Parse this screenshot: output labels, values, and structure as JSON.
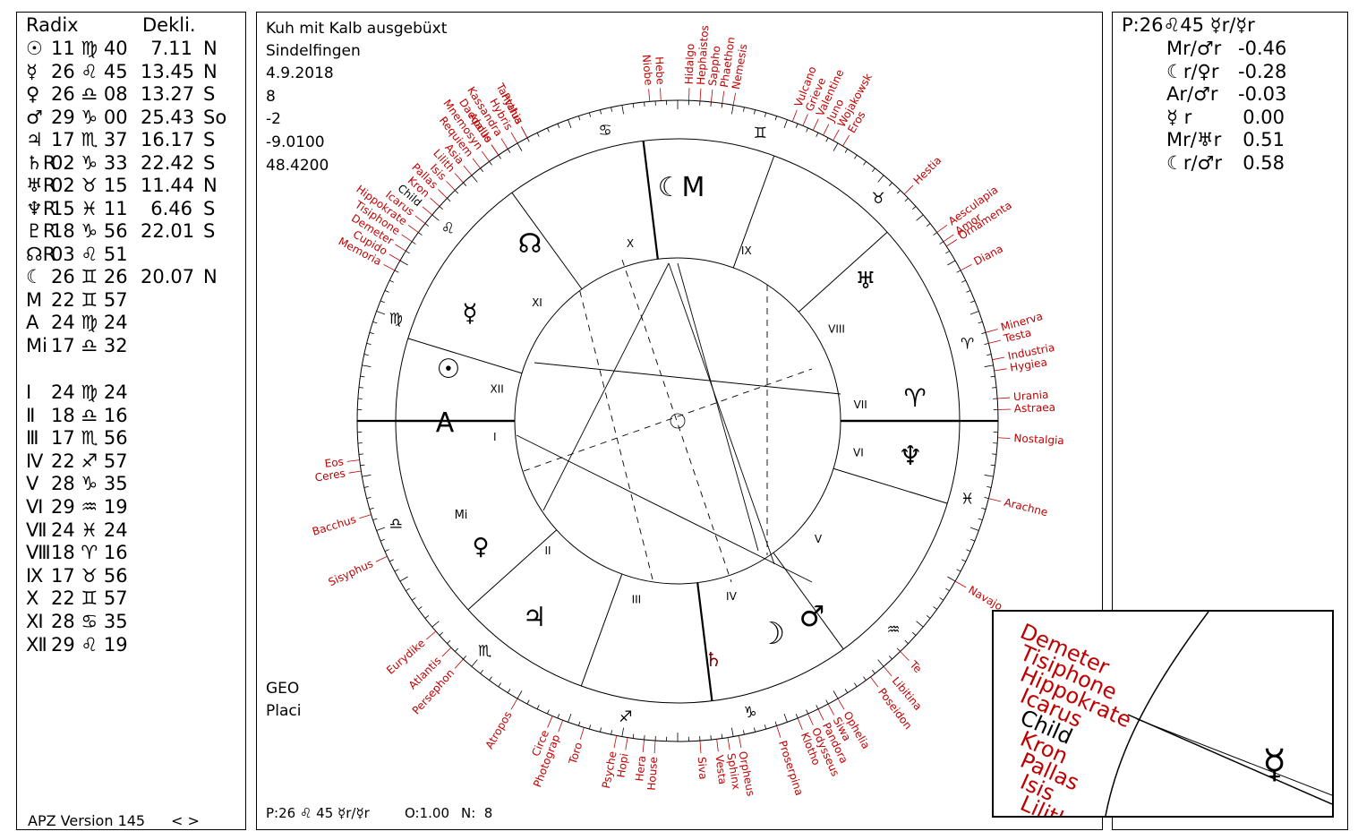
{
  "left": {
    "header_radix": "Radix",
    "header_dekli": "Dekli.",
    "planets": [
      {
        "glyph": "☉",
        "pos": "11 ♍ 40",
        "dekl": "7.11",
        "dir": "N"
      },
      {
        "glyph": "☿",
        "pos": "26 ♌ 45",
        "dekl": "13.45",
        "dir": "N"
      },
      {
        "glyph": "♀",
        "pos": "26 ♎ 08",
        "dekl": "13.27",
        "dir": "S"
      },
      {
        "glyph": "♂",
        "pos": "29 ♑ 00",
        "dekl": "25.43",
        "dir": "So"
      },
      {
        "glyph": "♃",
        "pos": "17 ♏ 37",
        "dekl": "16.17",
        "dir": "S"
      },
      {
        "glyph": "♄R",
        "pos": "02 ♑ 33",
        "dekl": "22.42",
        "dir": "S"
      },
      {
        "glyph": "♅R",
        "pos": "02 ♉ 15",
        "dekl": "11.44",
        "dir": "N"
      },
      {
        "glyph": "♆R",
        "pos": "15 ♓ 11",
        "dekl": "6.46",
        "dir": "S"
      },
      {
        "glyph": "♇R",
        "pos": "18 ♑ 56",
        "dekl": "22.01",
        "dir": "S"
      },
      {
        "glyph": "☊R",
        "pos": "03 ♌ 51",
        "dekl": "",
        "dir": ""
      },
      {
        "glyph": "☾",
        "pos": "26 ♊ 26",
        "dekl": "20.07",
        "dir": "N"
      },
      {
        "glyph": "M",
        "pos": "22 ♊ 57",
        "dekl": "",
        "dir": ""
      },
      {
        "glyph": "A",
        "pos": "24 ♍ 24",
        "dekl": "",
        "dir": ""
      },
      {
        "glyph": "Mi",
        "pos": "17 ♎ 32",
        "dekl": "",
        "dir": ""
      }
    ],
    "houses": [
      {
        "num": "Ⅰ",
        "pos": "24 ♍ 24"
      },
      {
        "num": "Ⅱ",
        "pos": "18 ♎ 16"
      },
      {
        "num": "Ⅲ",
        "pos": "17 ♏ 56"
      },
      {
        "num": "Ⅳ",
        "pos": "22 ♐ 57"
      },
      {
        "num": "Ⅴ",
        "pos": "28 ♑ 35"
      },
      {
        "num": "Ⅵ",
        "pos": "29 ♒ 19"
      },
      {
        "num": "Ⅶ",
        "pos": "24 ♓ 24"
      },
      {
        "num": "Ⅷ",
        "pos": "18 ♈ 16"
      },
      {
        "num": "Ⅸ",
        "pos": "17 ♉ 56"
      },
      {
        "num": "Ⅹ",
        "pos": "22 ♊ 57"
      },
      {
        "num": "Ⅺ",
        "pos": "28 ♋ 35"
      },
      {
        "num": "Ⅻ",
        "pos": "29 ♌ 19"
      }
    ],
    "version": "APZ Version 145",
    "nav": "< >"
  },
  "center": {
    "title": "Kuh mit Kalb ausgebüxt",
    "place": "Sindelfingen",
    "date": "4.9.2018",
    "hour": "8",
    "tz": "-2",
    "lon": "-9.0100",
    "lat": "48.4200",
    "geo": "GEO",
    "system": "Placi",
    "footer_p": "P:26 ♌ 45 ☿r/☿r",
    "footer_o": "O:1.00",
    "footer_n": "N:  8"
  },
  "right": {
    "title": "P:26♌45 ☿r/☿r",
    "rows": [
      {
        "label": "Mr/♂r",
        "value": "-0.46"
      },
      {
        "label": "☾r/♀r",
        "value": "-0.28"
      },
      {
        "label": "Ar/♂r",
        "value": "-0.03"
      },
      {
        "label": "☿ r",
        "value": "0.00"
      },
      {
        "label": "Mr/♅r",
        "value": "0.51"
      },
      {
        "label": "☾r/♂r",
        "value": "0.58"
      }
    ]
  },
  "wheel": {
    "asteroids_left": [
      "Memoria",
      "Cupido",
      "Demeter",
      "Tisiphone",
      "Hippokrate",
      "Icarus",
      "Child",
      "Kron",
      "Pallas",
      "Isis",
      "Lilith",
      "Asia",
      "Requiem",
      "Mnemosyn",
      "Daedalus",
      "Kassandra",
      "Hybris",
      "Tantalus",
      "Eos",
      "Ceres",
      "Bacchus",
      "Sisyphus",
      "Eurydike",
      "Atlantis",
      "Persephon",
      "Atropos",
      "Circe",
      "Photograp",
      "Toro",
      "Psyche",
      "Hopi",
      "Hera",
      "House",
      "Siva",
      "Vesta",
      "Sphinx",
      "Orpheus",
      "Proserpina",
      "Klotho",
      "Odysseus",
      "Pandora",
      "Siwa",
      "Ophelia",
      "Poseidon",
      "Libitina",
      "Te"
    ],
    "asteroids_right": [
      "Apollo",
      "Pythia",
      "Niobe",
      "Hebe",
      "Hidalgo",
      "Hephaistos",
      "Sappho",
      "Phaethon",
      "Nemesis",
      "Vulcano",
      "Grieve",
      "Valentine",
      "Juno",
      "Wojakowsk",
      "Eros",
      "Hestia",
      "Aesculapia",
      "Amor",
      "Ornamenta",
      "Diana",
      "Minerva",
      "Testa",
      "Industria",
      "Hygiea",
      "Urania",
      "Astraea",
      "Nostalgia",
      "Arachne",
      "Navajo"
    ],
    "house_labels": [
      "I",
      "II",
      "III",
      "IV",
      "V",
      "VI",
      "VII",
      "VIII",
      "IX",
      "X",
      "XI",
      "XII"
    ],
    "zodiac": [
      "♋",
      "♌",
      "♍",
      "♎",
      "♏",
      "♐",
      "♑",
      "♒",
      "♓",
      "♈",
      "♉",
      "♊"
    ],
    "axis_asc": "A",
    "axis_mc": "M",
    "colors": {
      "asteroid": "#c00000",
      "line": "#000000",
      "child": "#000000"
    }
  },
  "zoom": {
    "labels": [
      "Demeter",
      "Tisiphone",
      "Hippokrate",
      "Icarus",
      "Child",
      "Kron",
      "Pallas",
      "Isis",
      "Lilith"
    ],
    "mercury": "☿"
  }
}
